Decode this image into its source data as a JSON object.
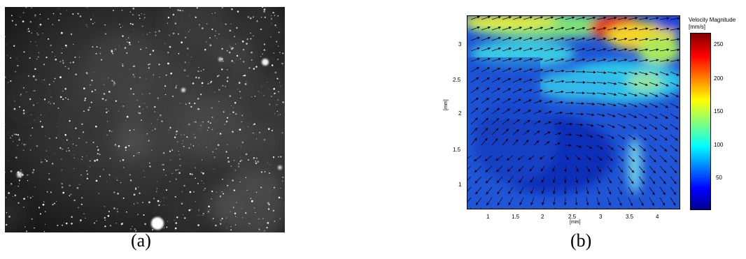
{
  "captions": {
    "a": "(a)",
    "b": "(b)"
  },
  "panel_b": {
    "xlabel": "[mm]",
    "ylabel": "[mm]",
    "x_ticks": [
      "1",
      "1.5",
      "2",
      "2.5",
      "3",
      "3.5",
      "4"
    ],
    "y_ticks": [
      "1",
      "1.5",
      "2",
      "2.5",
      "3"
    ],
    "colorbar": {
      "title": "Velocity Magnitude",
      "units": "[mm/s]",
      "ticks": [
        "250",
        "200",
        "150",
        "100",
        "50"
      ],
      "colormap": "jet",
      "range": [
        0,
        270
      ]
    }
  },
  "colors": {
    "bg": "#ffffff",
    "plot_bg": "#1f55d6"
  }
}
